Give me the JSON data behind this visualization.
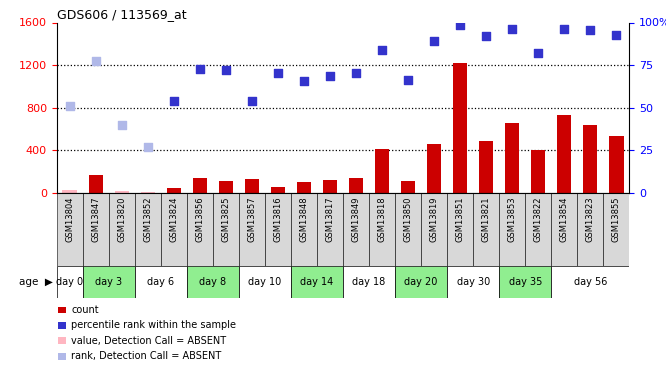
{
  "title": "GDS606 / 113569_at",
  "samples": [
    "GSM13804",
    "GSM13847",
    "GSM13820",
    "GSM13852",
    "GSM13824",
    "GSM13856",
    "GSM13825",
    "GSM13857",
    "GSM13816",
    "GSM13848",
    "GSM13817",
    "GSM13849",
    "GSM13818",
    "GSM13850",
    "GSM13819",
    "GSM13851",
    "GSM13821",
    "GSM13853",
    "GSM13822",
    "GSM13854",
    "GSM13823",
    "GSM13855"
  ],
  "age_groups": [
    {
      "label": "day 0",
      "start": 0,
      "end": 1,
      "green": false
    },
    {
      "label": "day 3",
      "start": 1,
      "end": 3,
      "green": true
    },
    {
      "label": "day 6",
      "start": 3,
      "end": 5,
      "green": false
    },
    {
      "label": "day 8",
      "start": 5,
      "end": 7,
      "green": true
    },
    {
      "label": "day 10",
      "start": 7,
      "end": 9,
      "green": false
    },
    {
      "label": "day 14",
      "start": 9,
      "end": 11,
      "green": true
    },
    {
      "label": "day 18",
      "start": 11,
      "end": 13,
      "green": false
    },
    {
      "label": "day 20",
      "start": 13,
      "end": 15,
      "green": true
    },
    {
      "label": "day 30",
      "start": 15,
      "end": 17,
      "green": false
    },
    {
      "label": "day 35",
      "start": 17,
      "end": 19,
      "green": true
    },
    {
      "label": "day 56",
      "start": 19,
      "end": 22,
      "green": false
    }
  ],
  "count_values": [
    30,
    170,
    20,
    10,
    50,
    140,
    110,
    130,
    60,
    100,
    120,
    140,
    415,
    115,
    460,
    1220,
    490,
    660,
    400,
    730,
    640,
    540
  ],
  "count_absent": [
    true,
    false,
    true,
    true,
    false,
    false,
    false,
    false,
    false,
    false,
    false,
    false,
    false,
    false,
    false,
    false,
    false,
    false,
    false,
    false,
    false,
    false
  ],
  "rank_values": [
    820,
    1240,
    640,
    430,
    860,
    1160,
    1150,
    860,
    1130,
    1050,
    1100,
    1130,
    1340,
    1060,
    1430,
    1580,
    1470,
    1540,
    1310,
    1540,
    1530,
    1480
  ],
  "rank_absent": [
    true,
    true,
    true,
    true,
    false,
    false,
    false,
    false,
    false,
    false,
    false,
    false,
    false,
    false,
    false,
    false,
    false,
    false,
    false,
    false,
    false,
    false
  ],
  "ylim_left": [
    0,
    1600
  ],
  "ylim_right": [
    0,
    100
  ],
  "yticks_left": [
    0,
    400,
    800,
    1200,
    1600
  ],
  "yticks_right": [
    0,
    25,
    50,
    75,
    100
  ],
  "count_color_present": "#cc0000",
  "count_color_absent": "#ffb6c1",
  "rank_color_present": "#3333cc",
  "rank_color_absent": "#b0b8e8",
  "bar_width": 0.55,
  "dot_size": 28,
  "green_color": "#90ee90",
  "sample_row_color": "#d8d8d8",
  "legend_items": [
    {
      "label": "count",
      "color": "#cc0000"
    },
    {
      "label": "percentile rank within the sample",
      "color": "#3333cc"
    },
    {
      "label": "value, Detection Call = ABSENT",
      "color": "#ffb6c1"
    },
    {
      "label": "rank, Detection Call = ABSENT",
      "color": "#b0b8e8"
    }
  ]
}
